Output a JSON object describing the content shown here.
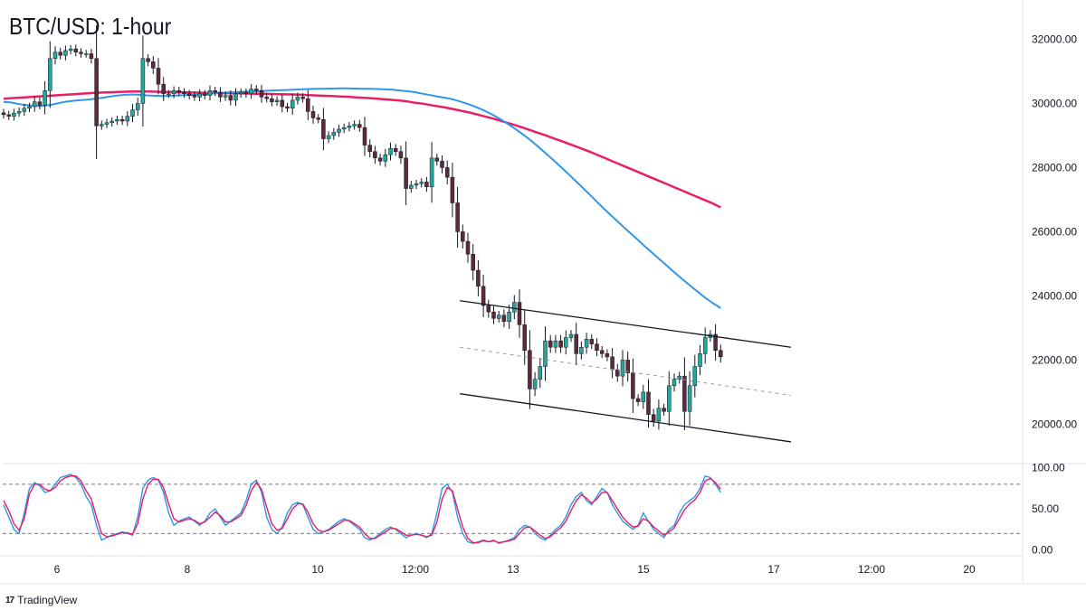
{
  "chart_data": [
    {
      "type": "candlestick",
      "title": "BTC/USD: 1-hour",
      "y_ticks": [
        {
          "value": 20000,
          "label": "20000.00"
        },
        {
          "value": 22000,
          "label": "22000.00"
        },
        {
          "value": 24000,
          "label": "24000.00"
        },
        {
          "value": 26000,
          "label": "26000.00"
        },
        {
          "value": 28000,
          "label": "28000.00"
        },
        {
          "value": 30000,
          "label": "30000.00"
        },
        {
          "value": 32000,
          "label": "32000.00"
        }
      ],
      "x_ticks": [
        {
          "index": 2,
          "label": "6"
        },
        {
          "index": 4,
          "label": "8"
        },
        {
          "index": 6,
          "label": "10"
        },
        {
          "index": 8,
          "label": "12:00"
        },
        {
          "index": 10,
          "label": "13"
        },
        {
          "index": 12,
          "label": "15"
        },
        {
          "index": 14,
          "label": "17"
        },
        {
          "index": 16,
          "label": "12:00"
        },
        {
          "index": 18,
          "label": "20"
        }
      ],
      "ylim": [
        18800,
        33000
      ],
      "colors": {
        "up": "#26a69a",
        "down": "#5d2a3a",
        "wick": "#131722",
        "ma_fast": "#2f96e8",
        "ma_slow": "#e91e63",
        "channel": "#131722",
        "midline": "#9aa0a6"
      },
      "closes": [
        29650,
        29600,
        29700,
        29750,
        29850,
        29900,
        30050,
        29950,
        30400,
        31400,
        31600,
        31500,
        31650,
        31700,
        31600,
        31550,
        31550,
        31400,
        29300,
        29350,
        29400,
        29450,
        29500,
        29450,
        29600,
        29800,
        30000,
        31400,
        31300,
        31100,
        30600,
        30300,
        30300,
        30400,
        30350,
        30300,
        30250,
        30200,
        30300,
        30250,
        30400,
        30350,
        30200,
        30250,
        30100,
        30300,
        30350,
        30300,
        30450,
        30400,
        30200,
        30150,
        30050,
        30100,
        29900,
        29850,
        30100,
        30200,
        30150,
        29750,
        29550,
        29500,
        28900,
        29000,
        29100,
        29200,
        29250,
        29300,
        29350,
        29250,
        28700,
        28500,
        28300,
        28200,
        28400,
        28600,
        28500,
        28300,
        27350,
        27450,
        27500,
        27550,
        27400,
        28300,
        28200,
        28000,
        27700,
        26900,
        26000,
        25700,
        25300,
        24800,
        24300,
        23700,
        23500,
        23300,
        23400,
        23200,
        23500,
        23800,
        23100,
        22300,
        21100,
        21400,
        21800,
        22600,
        22400,
        22600,
        22400,
        22700,
        22800,
        22200,
        22400,
        22650,
        22500,
        22300,
        22200,
        22100,
        21700,
        21500,
        22000,
        21600,
        20800,
        20700,
        21000,
        20300,
        20100,
        20500,
        20400,
        21200,
        21400,
        21500,
        20400,
        21200,
        21800,
        22200,
        22700,
        22800,
        22300,
        22100
      ],
      "ma_fast": [
        30050,
        30030,
        29980,
        29950,
        29930,
        29920,
        29950,
        30000,
        30050,
        30080,
        30100,
        30120,
        30150,
        30180,
        30220,
        30250,
        30270,
        30280,
        30260,
        30250,
        30240,
        30230,
        30240,
        30250,
        30260,
        30270,
        30280,
        30300,
        30320,
        30340,
        30350,
        30360,
        30370,
        30380,
        30390,
        30400,
        30410,
        30420,
        30430,
        30440,
        30450,
        30455,
        30460,
        30465,
        30470,
        30470,
        30465,
        30460,
        30455,
        30450,
        30440,
        30430,
        30400,
        30380,
        30350,
        30300,
        30260,
        30210,
        30170,
        30120,
        30050,
        29970,
        29880,
        29780,
        29660,
        29530,
        29380,
        29220,
        29050,
        28870,
        28670,
        28460,
        28250,
        28030,
        27810,
        27580,
        27350,
        27120,
        26880,
        26650,
        26430,
        26210,
        25990,
        25780,
        25560,
        25350,
        25140,
        24930,
        24720,
        24520,
        24320,
        24130,
        23940,
        23770,
        23620
      ],
      "ma_slow": [
        30150,
        30165,
        30180,
        30195,
        30210,
        30225,
        30240,
        30255,
        30270,
        30285,
        30300,
        30315,
        30330,
        30340,
        30350,
        30360,
        30365,
        30370,
        30370,
        30370,
        30365,
        30360,
        30355,
        30350,
        30345,
        30340,
        30335,
        30330,
        30325,
        30320,
        30318,
        30315,
        30310,
        30305,
        30300,
        30295,
        30290,
        30285,
        30280,
        30270,
        30260,
        30250,
        30240,
        30230,
        30220,
        30210,
        30195,
        30180,
        30165,
        30150,
        30130,
        30110,
        30090,
        30060,
        30020,
        29990,
        29950,
        29910,
        29870,
        29820,
        29770,
        29720,
        29660,
        29600,
        29540,
        29470,
        29400,
        29330,
        29250,
        29170,
        29090,
        29010,
        28920,
        28840,
        28750,
        28660,
        28570,
        28480,
        28380,
        28280,
        28180,
        28080,
        27980,
        27880,
        27780,
        27680,
        27580,
        27480,
        27380,
        27280,
        27180,
        27080,
        26980,
        26880,
        26760
      ],
      "channel": {
        "upper": {
          "from": {
            "bar": 86,
            "value": 23850
          },
          "to": {
            "bar": 140,
            "value": 22400
          }
        },
        "lower": {
          "from": {
            "bar": 86,
            "value": 20950
          },
          "to": {
            "bar": 140,
            "value": 19450
          }
        },
        "mid": {
          "from": {
            "bar": 86,
            "value": 22400
          },
          "to": {
            "bar": 140,
            "value": 20900
          }
        }
      }
    },
    {
      "type": "line",
      "y_ticks": [
        {
          "value": 0,
          "label": "0.00"
        },
        {
          "value": 50,
          "label": "50.00"
        },
        {
          "value": 100,
          "label": "100.00"
        }
      ],
      "ylim": [
        -6,
        104
      ],
      "levels": [
        20,
        80
      ],
      "series": [
        {
          "color": "#2f96e8",
          "values": [
            55,
            40,
            25,
            20,
            45,
            75,
            82,
            78,
            70,
            72,
            80,
            88,
            90,
            92,
            88,
            80,
            65,
            55,
            30,
            12,
            15,
            18,
            20,
            22,
            20,
            18,
            40,
            75,
            85,
            88,
            85,
            70,
            45,
            30,
            35,
            38,
            40,
            35,
            30,
            35,
            45,
            50,
            40,
            30,
            35,
            40,
            45,
            60,
            80,
            85,
            70,
            40,
            25,
            20,
            28,
            45,
            55,
            58,
            55,
            40,
            25,
            20,
            22,
            25,
            30,
            35,
            38,
            35,
            30,
            25,
            15,
            12,
            15,
            20,
            25,
            28,
            25,
            20,
            15,
            18,
            20,
            18,
            15,
            20,
            45,
            75,
            80,
            70,
            40,
            20,
            10,
            8,
            10,
            12,
            10,
            12,
            8,
            10,
            12,
            15,
            25,
            30,
            28,
            20,
            15,
            12,
            18,
            25,
            30,
            40,
            55,
            65,
            70,
            60,
            55,
            65,
            75,
            70,
            55,
            45,
            35,
            30,
            25,
            30,
            45,
            35,
            25,
            20,
            15,
            25,
            30,
            45,
            55,
            60,
            65,
            75,
            90,
            88,
            80,
            70
          ]
        },
        {
          "color": "#e91e63",
          "values": [
            60,
            48,
            32,
            24,
            38,
            68,
            80,
            80,
            74,
            72,
            76,
            84,
            88,
            90,
            90,
            84,
            72,
            62,
            40,
            20,
            16,
            17,
            19,
            21,
            21,
            19,
            32,
            62,
            80,
            86,
            86,
            76,
            56,
            38,
            34,
            36,
            38,
            36,
            32,
            34,
            40,
            46,
            42,
            34,
            34,
            38,
            42,
            54,
            72,
            82,
            74,
            52,
            32,
            24,
            26,
            38,
            50,
            56,
            56,
            46,
            32,
            24,
            22,
            24,
            28,
            32,
            36,
            36,
            32,
            28,
            20,
            14,
            14,
            18,
            22,
            26,
            26,
            22,
            18,
            18,
            19,
            18,
            16,
            18,
            34,
            62,
            76,
            72,
            50,
            28,
            14,
            9,
            9,
            11,
            10,
            11,
            9,
            10,
            11,
            13,
            20,
            27,
            28,
            23,
            18,
            14,
            16,
            22,
            27,
            35,
            48,
            60,
            67,
            63,
            57,
            62,
            70,
            70,
            60,
            50,
            40,
            33,
            28,
            29,
            38,
            35,
            28,
            23,
            18,
            22,
            27,
            38,
            49,
            56,
            61,
            70,
            84,
            87,
            82,
            74
          ]
        }
      ]
    }
  ],
  "brand": {
    "name": "TradingView",
    "icon": "tradingview-logo-icon"
  }
}
